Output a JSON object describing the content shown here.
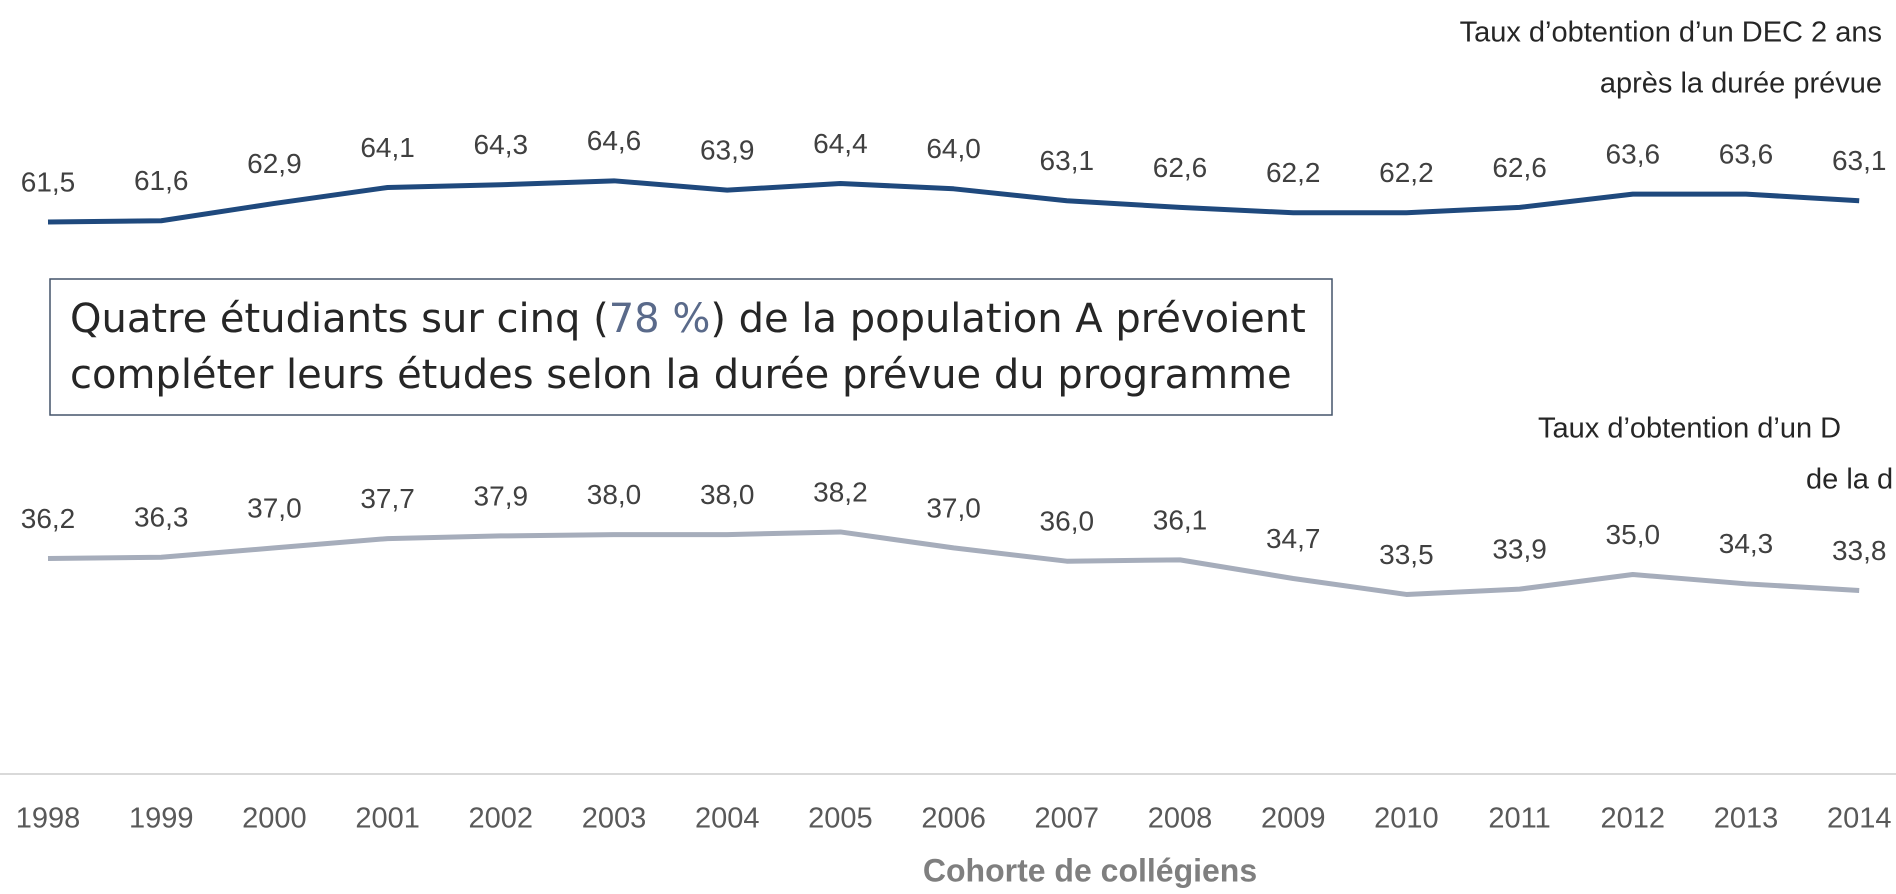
{
  "chart_data": {
    "type": "line",
    "x_label": "Cohorte de collégiens",
    "categories": [
      "1998",
      "1999",
      "2000",
      "2001",
      "2002",
      "2003",
      "2004",
      "2005",
      "2006",
      "2007",
      "2008",
      "2009",
      "2010",
      "2011",
      "2012",
      "2013",
      "2014"
    ],
    "ylim": [
      20,
      80
    ],
    "series": [
      {
        "color": "#1f497d",
        "label_lines": [
          "Taux d’obtention d’un DEC 2 ans",
          "après la durée prévue"
        ],
        "values": [
          61.5,
          61.6,
          62.9,
          64.1,
          64.3,
          64.6,
          63.9,
          64.4,
          64.0,
          63.1,
          62.6,
          62.2,
          62.2,
          62.6,
          63.6,
          63.6,
          63.1
        ],
        "value_labels": [
          "61,5",
          "61,6",
          "62,9",
          "64,1",
          "64,3",
          "64,6",
          "63,9",
          "64,4",
          "64,0",
          "63,1",
          "62,6",
          "62,2",
          "62,2",
          "62,6",
          "63,6",
          "63,6",
          "63,1"
        ]
      },
      {
        "color": "#a6adbb",
        "label_lines": [
          "Taux d’obtention d’un D",
          "de la d"
        ],
        "values": [
          36.2,
          36.3,
          37.0,
          37.7,
          37.9,
          38.0,
          38.0,
          38.2,
          37.0,
          36.0,
          36.1,
          34.7,
          33.5,
          33.9,
          35.0,
          34.3,
          33.8
        ],
        "value_labels": [
          "36,2",
          "36,3",
          "37,0",
          "37,7",
          "37,9",
          "38,0",
          "38,0",
          "38,2",
          "37,0",
          "36,0",
          "36,1",
          "34,7",
          "33,5",
          "33,9",
          "35,0",
          "34,3",
          "33,8"
        ]
      }
    ],
    "callout": {
      "line1": [
        "Quatre étudiants sur cinq (",
        "78 %",
        ") de la population A prévoient"
      ],
      "line2": "compléter leurs études selon la durée prévue du programme",
      "highlight_color": "#5a6a8a"
    }
  }
}
